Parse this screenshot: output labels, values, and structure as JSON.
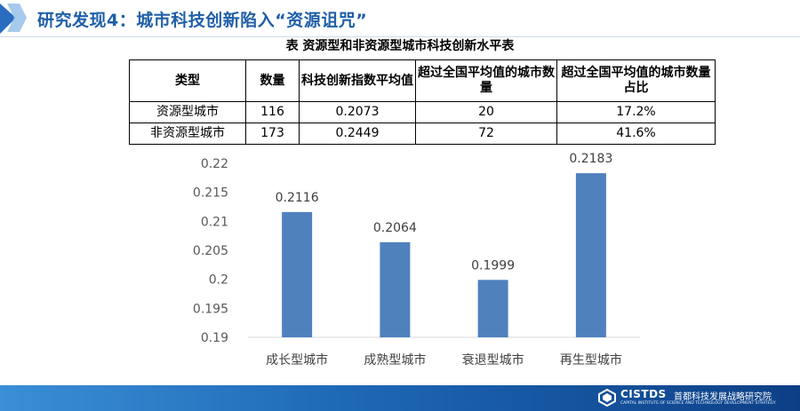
{
  "header": {
    "title": "研究发现4：城市科技创新陷入“资源诅咒”"
  },
  "table": {
    "caption": "表  资源型和非资源型城市科技创新水平表",
    "columns": [
      "类型",
      "数量",
      "科技创新指数平均值",
      "超过全国平均值的城市数量",
      "超过全国平均值的城市数量占比"
    ],
    "rows": [
      [
        "资源型城市",
        "116",
        "0.2073",
        "20",
        "17.2%"
      ],
      [
        "非资源型城市",
        "173",
        "0.2449",
        "72",
        "41.6%"
      ]
    ]
  },
  "chart_data": {
    "type": "bar",
    "categories": [
      "成长型城市",
      "成熟型城市",
      "衰退型城市",
      "再生型城市"
    ],
    "values": [
      0.2116,
      0.2064,
      0.1999,
      0.2183
    ],
    "value_labels": [
      "0.2116",
      "0.2064",
      "0.1999",
      "0.2183"
    ],
    "y_ticks": [
      "0.22",
      "0.215",
      "0.21",
      "0.205",
      "0.2",
      "0.195",
      "0.19"
    ],
    "ylim": [
      0.19,
      0.22
    ],
    "grid": false,
    "bar_color": "#4f81bd"
  },
  "footer": {
    "logo_text": "CISTDS",
    "org_name": "首都科技发展战略研究院",
    "org_name_en": "CAPITAL INSTITUTE OF SCIENCE AND TECHNOLOGY DEVELOPMENT STRATEGY",
    "bg_color": "#1d67b5"
  }
}
